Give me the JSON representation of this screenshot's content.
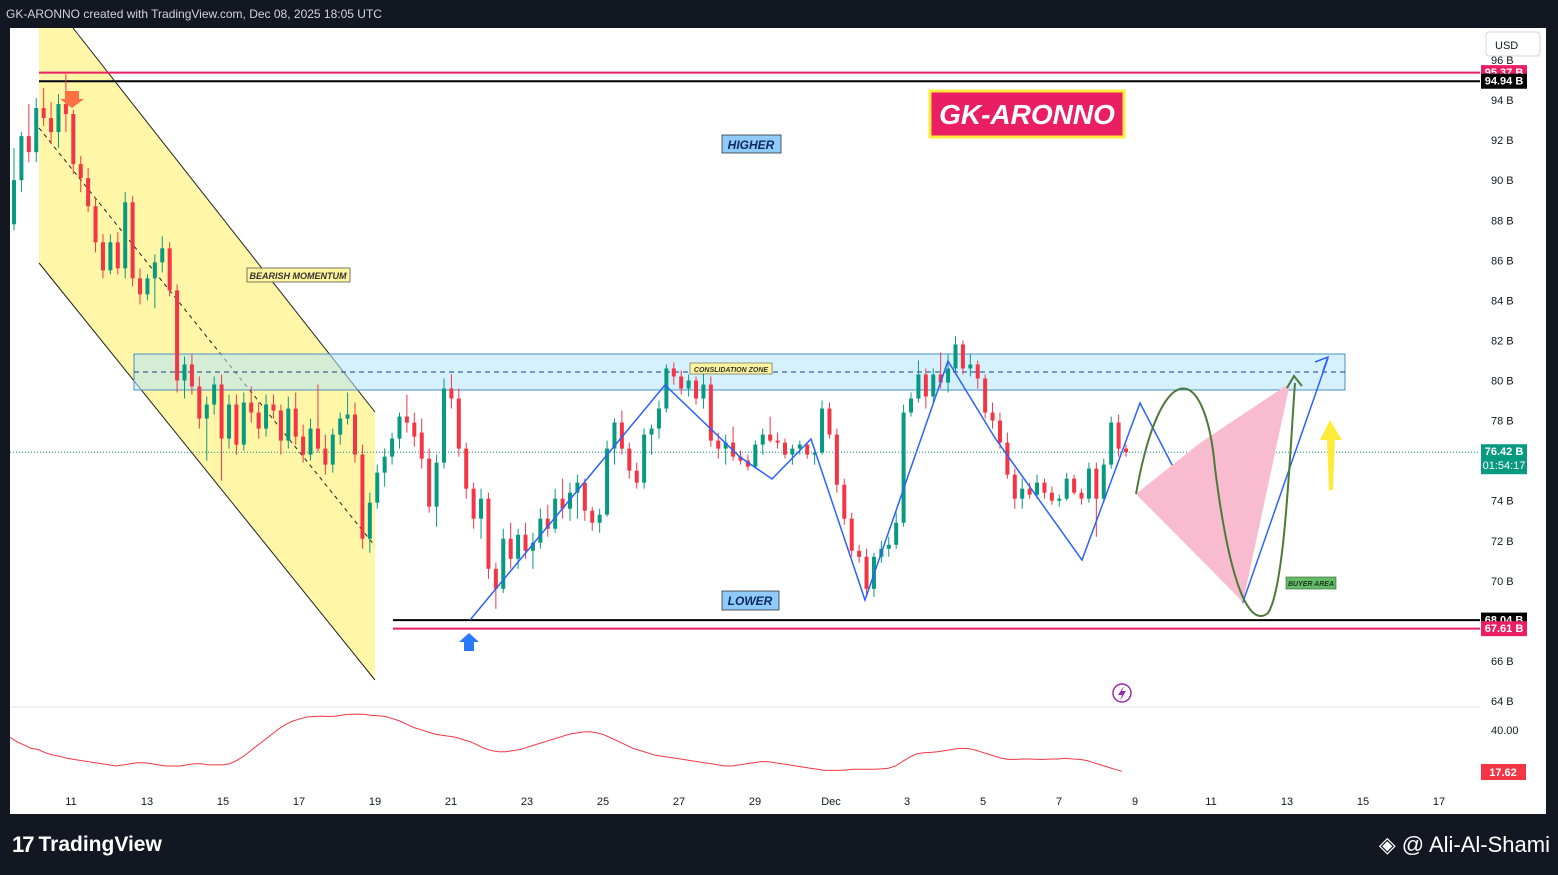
{
  "header": {
    "attribution": "GK-ARONNO created with TradingView.com, Dec 08, 2025 18:05 UTC"
  },
  "footer": {
    "brand": "TradingView",
    "author": "@ Ali-Al-Shami"
  },
  "currency_label": "USD",
  "colors": {
    "up": "#089981",
    "down": "#f23645",
    "pink_line": "#e91e63",
    "blue_line": "#2962ff",
    "channel_fill": "#fff59d",
    "zone_fill": "#b3e5fc",
    "projection_fill": "#f8bbd0"
  },
  "chart_data": {
    "type": "candlestick",
    "unit": "B",
    "y_ticks": [
      "96 B",
      "94 B",
      "92 B",
      "90 B",
      "88 B",
      "86 B",
      "84 B",
      "82 B",
      "80 B",
      "78 B",
      "74 B",
      "72 B",
      "70 B",
      "66 B",
      "64 B"
    ],
    "x_ticks": [
      "11",
      "13",
      "15",
      "17",
      "19",
      "21",
      "23",
      "25",
      "27",
      "29",
      "Dec",
      "3",
      "5",
      "7",
      "9",
      "11",
      "13",
      "15",
      "17"
    ],
    "ylim": [
      63.5,
      97.5
    ],
    "price_tags": [
      {
        "label": "95.37 B",
        "value": 95.37,
        "color": "#e91e63"
      },
      {
        "label": "94.94 B",
        "value": 94.94,
        "color": "#000000"
      },
      {
        "label": "76.42 B",
        "value": 76.42,
        "color": "#089981",
        "sub": "01:54:17"
      },
      {
        "label": "68.04 B",
        "value": 68.04,
        "color": "#000000"
      },
      {
        "label": "67.61 B",
        "value": 67.61,
        "color": "#e91e63"
      }
    ],
    "horizontal_levels": [
      {
        "value": 95.37,
        "color": "#e91e63"
      },
      {
        "value": 94.94,
        "color": "#000000"
      },
      {
        "value": 68.04,
        "color": "#000000"
      },
      {
        "value": 67.61,
        "color": "#e91e63"
      }
    ],
    "consolidation_zone": {
      "low": 80.5,
      "high": 82.4,
      "mid": 81.5,
      "label": "CONSLIDATION ZONE"
    },
    "annotations": {
      "title_badge": "GK-ARONNO",
      "higher": "HIGHER",
      "lower": "LOWER",
      "bearish": "BEARISH MOMENTUM",
      "buyer": "BUYER AREA"
    },
    "candles": [
      [
        87.8,
        91.6,
        87.5,
        90.0
      ],
      [
        90.0,
        92.4,
        89.4,
        92.2
      ],
      [
        92.2,
        93.8,
        90.9,
        91.4
      ],
      [
        91.4,
        94.1,
        90.9,
        93.6
      ],
      [
        93.6,
        94.6,
        92.7,
        93.1
      ],
      [
        93.1,
        93.9,
        91.8,
        92.4
      ],
      [
        92.4,
        94.3,
        91.6,
        93.8
      ],
      [
        93.8,
        95.3,
        92.4,
        93.3
      ],
      [
        93.3,
        93.5,
        90.3,
        90.8
      ],
      [
        90.8,
        91.2,
        89.4,
        90.1
      ],
      [
        90.1,
        90.6,
        88.4,
        88.7
      ],
      [
        88.7,
        89.1,
        86.4,
        86.9
      ],
      [
        86.9,
        87.3,
        85.1,
        85.5
      ],
      [
        85.5,
        87.3,
        85.3,
        86.9
      ],
      [
        86.9,
        87.4,
        85.3,
        85.6
      ],
      [
        85.6,
        89.4,
        85.1,
        88.9
      ],
      [
        88.9,
        89.2,
        84.7,
        85.1
      ],
      [
        85.1,
        85.6,
        83.8,
        84.3
      ],
      [
        84.3,
        85.3,
        84.0,
        85.1
      ],
      [
        85.1,
        86.3,
        83.6,
        85.9
      ],
      [
        85.9,
        87.2,
        85.4,
        86.6
      ],
      [
        86.6,
        86.9,
        84.2,
        84.5
      ],
      [
        84.5,
        84.8,
        79.4,
        80.0
      ],
      [
        80.0,
        81.2,
        79.1,
        80.8
      ],
      [
        80.8,
        81.3,
        79.3,
        79.7
      ],
      [
        79.7,
        80.2,
        77.6,
        78.1
      ],
      [
        78.1,
        79.2,
        76.0,
        78.8
      ],
      [
        78.8,
        80.2,
        78.3,
        79.8
      ],
      [
        79.8,
        80.3,
        75.0,
        77.1
      ],
      [
        77.1,
        79.3,
        76.6,
        78.8
      ],
      [
        78.8,
        79.3,
        76.3,
        76.8
      ],
      [
        76.8,
        79.4,
        76.5,
        78.9
      ],
      [
        78.9,
        79.7,
        77.9,
        78.4
      ],
      [
        78.4,
        78.9,
        77.1,
        77.6
      ],
      [
        77.6,
        79.3,
        77.2,
        78.8
      ],
      [
        78.8,
        79.3,
        78.1,
        78.5
      ],
      [
        78.5,
        78.8,
        76.3,
        77.0
      ],
      [
        77.0,
        79.2,
        76.6,
        78.6
      ],
      [
        78.6,
        79.4,
        76.8,
        77.2
      ],
      [
        77.2,
        77.8,
        75.9,
        76.3
      ],
      [
        76.3,
        78.1,
        76.0,
        77.6
      ],
      [
        77.6,
        79.8,
        76.4,
        76.6
      ],
      [
        76.6,
        77.3,
        75.3,
        75.8
      ],
      [
        75.8,
        77.6,
        75.4,
        77.3
      ],
      [
        77.3,
        78.4,
        76.8,
        78.1
      ],
      [
        78.1,
        79.4,
        77.8,
        78.3
      ],
      [
        78.3,
        78.9,
        75.9,
        76.3
      ],
      [
        76.3,
        76.8,
        71.6,
        72.1
      ],
      [
        72.1,
        74.4,
        71.4,
        73.9
      ],
      [
        73.9,
        75.8,
        73.6,
        75.4
      ],
      [
        75.4,
        76.6,
        74.7,
        76.2
      ],
      [
        76.2,
        77.4,
        75.8,
        77.1
      ],
      [
        77.1,
        78.4,
        76.6,
        78.2
      ],
      [
        78.2,
        79.3,
        77.4,
        77.9
      ],
      [
        77.9,
        78.4,
        76.7,
        77.2
      ]
    ],
    "candles2": [
      [
        77.4,
        78.1,
        75.6,
        76.1
      ],
      [
        76.1,
        76.6,
        73.4,
        73.7
      ],
      [
        73.7,
        76.3,
        72.7,
        75.9
      ],
      [
        75.9,
        80.1,
        75.6,
        79.6
      ],
      [
        79.6,
        80.3,
        78.6,
        79.1
      ],
      [
        79.1,
        79.6,
        76.2,
        76.6
      ],
      [
        76.6,
        76.9,
        74.1,
        74.6
      ],
      [
        74.6,
        74.9,
        72.6,
        73.1
      ],
      [
        73.1,
        74.6,
        72.1,
        74.1
      ],
      [
        74.1,
        74.4,
        70.1,
        70.6
      ],
      [
        70.6,
        70.9,
        68.6,
        69.6
      ],
      [
        69.6,
        72.6,
        69.4,
        72.1
      ],
      [
        72.1,
        72.9,
        70.6,
        71.1
      ],
      [
        71.1,
        72.6,
        70.6,
        72.3
      ],
      [
        72.3,
        72.9,
        71.1,
        71.5
      ],
      [
        71.5,
        72.4,
        70.6,
        71.9
      ],
      [
        71.9,
        73.6,
        71.6,
        73.1
      ],
      [
        73.1,
        73.8,
        72.2,
        72.6
      ],
      [
        72.6,
        74.6,
        72.4,
        74.1
      ],
      [
        74.1,
        75.1,
        73.1,
        73.6
      ],
      [
        73.6,
        74.9,
        73.0,
        74.4
      ],
      [
        74.4,
        75.3,
        73.1,
        74.9
      ],
      [
        74.9,
        75.1,
        73.0,
        73.5
      ],
      [
        73.5,
        73.7,
        72.5,
        72.9
      ],
      [
        72.9,
        73.6,
        72.4,
        73.3
      ],
      [
        73.3,
        77.0,
        73.2,
        76.6
      ],
      [
        76.6,
        78.1,
        75.8,
        77.9
      ],
      [
        77.9,
        78.5,
        76.3,
        76.6
      ],
      [
        76.6,
        76.9,
        75.1,
        75.5
      ],
      [
        75.5,
        75.9,
        74.6,
        74.9
      ],
      [
        74.9,
        77.6,
        74.6,
        77.3
      ],
      [
        77.3,
        77.8,
        76.3,
        77.6
      ],
      [
        77.6,
        79.0,
        77.1,
        78.6
      ],
      [
        78.6,
        80.8,
        78.4,
        80.6
      ],
      [
        80.6,
        80.9,
        79.8,
        80.2
      ],
      [
        80.2,
        80.5,
        79.3,
        79.6
      ],
      [
        79.6,
        80.3,
        79.2,
        80.0
      ],
      [
        80.0,
        80.2,
        78.8,
        79.1
      ],
      [
        79.1,
        80.4,
        78.6,
        79.8
      ],
      [
        79.8,
        80.2,
        76.7,
        77.0
      ],
      [
        77.0,
        77.4,
        76.1,
        76.6
      ],
      [
        76.6,
        77.3,
        75.8,
        76.9
      ],
      [
        76.9,
        77.7,
        76.0,
        76.2
      ],
      [
        76.2,
        76.5,
        75.8,
        76.0
      ],
      [
        76.0,
        76.3,
        75.5,
        75.7
      ],
      [
        75.7,
        77.0,
        75.6,
        76.8
      ],
      [
        76.8,
        77.6,
        76.3,
        77.3
      ],
      [
        77.3,
        78.2,
        76.9,
        77.0
      ],
      [
        77.0,
        77.4,
        76.6,
        76.9
      ],
      [
        76.9,
        77.1,
        76.1,
        76.3
      ],
      [
        76.3,
        76.8,
        75.8,
        76.6
      ],
      [
        76.6,
        77.0,
        76.3,
        76.8
      ],
      [
        76.8,
        76.9,
        76.1,
        76.3
      ],
      [
        76.3,
        76.6,
        75.8,
        76.4
      ],
      [
        76.4,
        79.0,
        76.3,
        78.6
      ],
      [
        78.6,
        78.9,
        77.1,
        77.3
      ],
      [
        77.3,
        77.6,
        74.4,
        74.8
      ],
      [
        74.8,
        75.1,
        72.8,
        73.1
      ],
      [
        73.1,
        73.4,
        71.2,
        71.5
      ],
      [
        71.5,
        71.8,
        70.9,
        71.2
      ],
      [
        71.2,
        71.6,
        69.2,
        69.6
      ],
      [
        69.6,
        71.4,
        69.2,
        71.2
      ],
      [
        71.2,
        72.0,
        70.9,
        71.6
      ],
      [
        71.6,
        72.2,
        71.2,
        71.8
      ],
      [
        71.8,
        73.4,
        71.6,
        72.9
      ],
      [
        72.9,
        78.8,
        72.7,
        78.4
      ],
      [
        78.4,
        79.4,
        78.2,
        79.1
      ],
      [
        79.1,
        81.0,
        78.9,
        80.3
      ],
      [
        80.3,
        80.6,
        78.6,
        79.2
      ],
      [
        79.2,
        80.6,
        78.9,
        80.3
      ],
      [
        80.3,
        81.4,
        79.6,
        79.9
      ],
      [
        79.9,
        81.3,
        79.4,
        80.6
      ],
      [
        80.6,
        82.2,
        80.3,
        81.8
      ],
      [
        81.8,
        82.0,
        80.3,
        80.6
      ],
      [
        80.6,
        81.3,
        80.2,
        80.8
      ],
      [
        80.8,
        81.0,
        79.6,
        80.1
      ],
      [
        80.1,
        80.3,
        78.1,
        78.4
      ],
      [
        78.4,
        78.9,
        77.6,
        78.0
      ],
      [
        78.0,
        78.4,
        76.6,
        76.9
      ],
      [
        76.9,
        77.4,
        75.1,
        75.3
      ],
      [
        75.3,
        75.6,
        73.6,
        74.1
      ],
      [
        74.1,
        75.1,
        73.6,
        74.6
      ],
      [
        74.6,
        74.9,
        74.1,
        74.3
      ],
      [
        74.3,
        75.3,
        74.1,
        74.9
      ],
      [
        74.9,
        75.1,
        74.1,
        74.4
      ],
      [
        74.4,
        74.7,
        73.8,
        74.0
      ],
      [
        74.0,
        74.3,
        73.7,
        74.1
      ],
      [
        74.1,
        75.4,
        74.0,
        75.1
      ],
      [
        75.1,
        75.3,
        74.3,
        74.4
      ],
      [
        74.4,
        74.6,
        73.8,
        74.1
      ],
      [
        74.1,
        75.9,
        73.9,
        75.6
      ],
      [
        75.6,
        75.9,
        72.2,
        74.1
      ],
      [
        74.1,
        76.1,
        73.9,
        75.8
      ],
      [
        75.8,
        78.2,
        75.6,
        77.9
      ],
      [
        77.9,
        78.3,
        76.2,
        76.6
      ],
      [
        76.6,
        76.8,
        76.2,
        76.42
      ]
    ],
    "indicator": {
      "label": "17.62",
      "top_tick": "40.00",
      "ylim": [
        10,
        45
      ],
      "values": [
        33,
        31,
        29.5,
        28,
        27.5,
        26,
        25,
        24.5,
        23.5,
        23,
        22.5,
        22,
        21.5,
        21,
        20.5,
        20,
        20.5,
        21,
        21.5,
        21.5,
        21,
        20.5,
        20,
        20,
        20,
        20.5,
        21,
        21,
        20.5,
        20.5,
        20.5,
        21,
        22.5,
        24.5,
        27,
        29.5,
        32,
        34.5,
        37,
        39,
        40.5,
        41.5,
        42.3,
        42.5,
        42.7,
        42.5,
        42.7,
        43.2,
        43.5,
        43.6,
        43.5,
        43,
        42.8,
        42.5,
        41.5,
        40.5,
        39,
        37.5,
        36.5,
        35.5,
        34.5,
        34,
        33.5,
        33,
        32,
        31,
        29.5,
        28,
        27,
        26.5,
        26.5,
        27,
        27.5,
        28.5,
        29.5,
        30.5,
        31.5,
        32.5,
        33.5,
        34.5,
        35,
        35.5,
        35.5,
        35,
        34,
        32.5,
        31,
        29.5,
        28,
        27,
        26,
        25,
        24.5,
        24,
        23.5,
        23,
        22.5,
        22,
        21.5,
        21,
        20.5,
        20,
        20,
        20.5,
        21,
        21.5,
        22,
        22,
        21.5,
        21,
        20.5,
        20,
        19.5,
        19,
        18.5,
        18,
        18,
        18,
        18.2,
        18.5,
        18.5,
        18.5,
        18.5,
        18.7,
        19,
        20,
        22,
        24,
        25.5,
        26,
        26.2,
        26.5,
        27,
        27.5,
        28,
        28,
        27.5,
        26.5,
        25.5,
        24.5,
        23.5,
        23,
        23,
        23.2,
        23.2,
        23,
        23,
        23.2,
        23.2,
        23.5,
        23.2,
        23,
        22.5,
        21.5,
        20.5,
        19.5,
        18.5,
        17.62
      ]
    }
  }
}
